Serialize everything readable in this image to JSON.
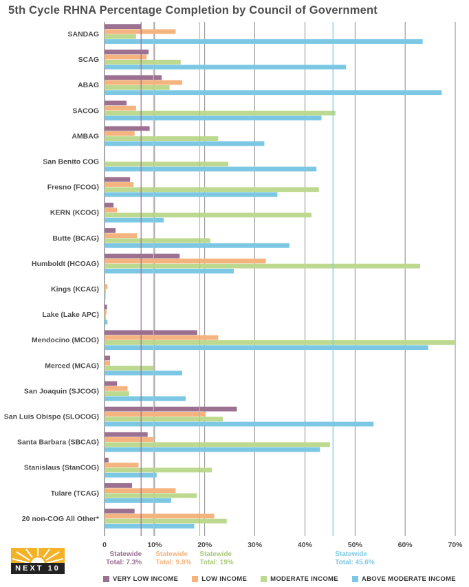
{
  "title": "5th Cycle RHNA Percentage Completion by Council of Government",
  "legend": [
    {
      "label": "VERY LOW INCOME",
      "color": "#9b7090"
    },
    {
      "label": "LOW INCOME",
      "color": "#f4b37f"
    },
    {
      "label": "MODERATE INCOME",
      "color": "#bcd98f"
    },
    {
      "label": "ABOVE MODERATE INCOME",
      "color": "#7cc7e3"
    }
  ],
  "logo": {
    "text": "NEXT 10"
  },
  "statewide": [
    {
      "line1": "Statewide",
      "line2": "Total: 7.3%",
      "value": 7.3,
      "color": "#9b7090"
    },
    {
      "line1": "Statewide",
      "line2": "Total: 9.8%",
      "value": 9.8,
      "color": "#f4b37f"
    },
    {
      "line1": "Statewide",
      "line2": "Total: 19%",
      "value": 19,
      "color": "#a9c97a"
    },
    {
      "line1": "Statewide",
      "line2": "Total: 45.6%",
      "value": 45.6,
      "color": "#7cc7e3"
    }
  ],
  "chart_data": {
    "type": "bar",
    "orientation": "horizontal",
    "title": "5th Cycle RHNA Percentage Completion by Council of Government",
    "xlim": [
      0,
      70
    ],
    "x_ticks": [
      "0",
      "10%",
      "20%",
      "30%",
      "40%",
      "50%",
      "60%",
      "70%"
    ],
    "grid": "vertical",
    "legend_position": "bottom",
    "categories": [
      "SANDAG",
      "SCAG",
      "ABAG",
      "SACOG",
      "AMBAG",
      "San Benito COG",
      "Fresno (FCOG)",
      "KERN (KCOG)",
      "Butte (BCAG)",
      "Humboldt (HCOAG)",
      "Kings (KCAG)",
      "Lake (Lake APC)",
      "Mendocino (MCOG)",
      "Merced (MCAG)",
      "San Joaquin (SJCOG)",
      "San Luis Obispo (SLOCOG)",
      "Santa Barbara (SBCAG)",
      "Stanislaus (StanCOG)",
      "Tulare (TCAG)",
      "20 non-COG All Other*"
    ],
    "series": [
      {
        "name": "VERY LOW INCOME",
        "color": "#9b7090",
        "values": [
          7.3,
          8.8,
          11.4,
          4.4,
          9.0,
          0,
          5.1,
          1.8,
          2.2,
          15.0,
          0,
          0.5,
          18.5,
          1.1,
          2.5,
          26.4,
          8.6,
          0.8,
          5.5,
          6.0
        ]
      },
      {
        "name": "LOW INCOME",
        "color": "#f4b37f",
        "values": [
          14.2,
          8.4,
          15.5,
          6.3,
          6.0,
          0,
          5.8,
          2.5,
          6.5,
          32.2,
          0.6,
          0.4,
          22.7,
          1.1,
          4.6,
          20.2,
          9.7,
          6.8,
          14.2,
          21.9
        ]
      },
      {
        "name": "MODERATE INCOME",
        "color": "#bcd98f",
        "values": [
          6.3,
          15.2,
          13.0,
          46.1,
          22.7,
          24.7,
          42.8,
          41.3,
          21.1,
          63.0,
          0.3,
          0.3,
          70.0,
          9.8,
          4.9,
          23.6,
          45.0,
          21.4,
          18.4,
          24.4
        ]
      },
      {
        "name": "ABOVE MODERATE INCOME",
        "color": "#7cc7e3",
        "values": [
          63.5,
          48.2,
          67.3,
          43.3,
          31.9,
          42.3,
          34.5,
          11.8,
          36.9,
          25.8,
          0.2,
          0.6,
          64.6,
          15.5,
          16.2,
          53.7,
          43.0,
          10.4,
          13.3,
          17.9
        ]
      }
    ]
  }
}
